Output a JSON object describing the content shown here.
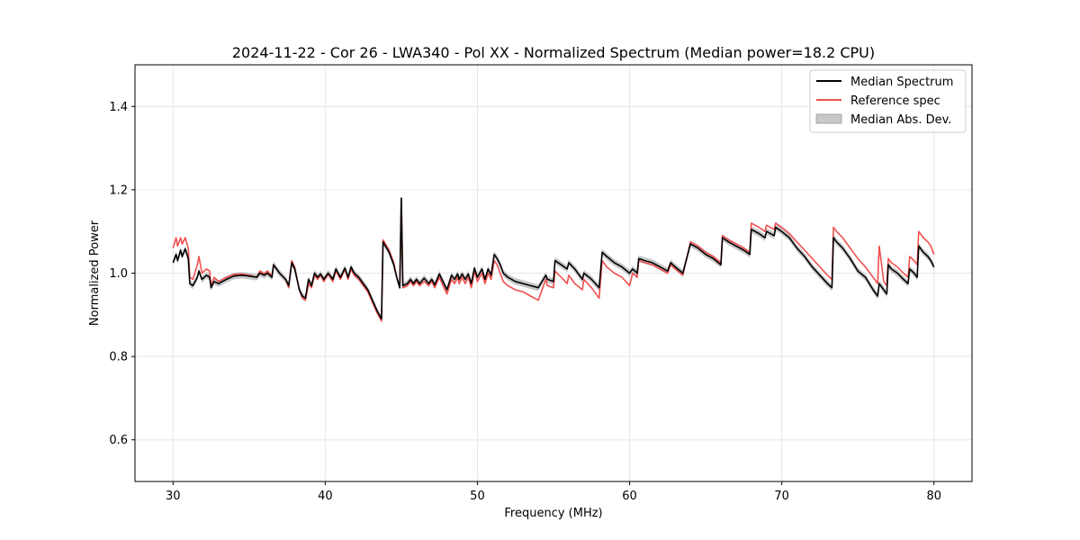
{
  "chart_data": {
    "type": "line",
    "title": "2024-11-22 - Cor 26 - LWA340 - Pol XX - Normalized Spectrum (Median power=18.2 CPU)",
    "xlabel": "Frequency (MHz)",
    "ylabel": "Normalized Power",
    "xlim": [
      27.5,
      82.5
    ],
    "ylim": [
      0.5,
      1.5
    ],
    "xticks": [
      30,
      40,
      50,
      60,
      70,
      80
    ],
    "yticks": [
      0.6,
      0.8,
      1.0,
      1.2,
      1.4
    ],
    "grid": true,
    "legend_position": "top-right",
    "legend": [
      "Median Spectrum",
      "Reference spec",
      "Median Abs. Dev."
    ],
    "colors": {
      "median": "#000000",
      "reference": "#f0504f",
      "mad_fill": "#b0b0b0",
      "grid": "#e6e6e6"
    },
    "mad_width": 0.008,
    "series": [
      {
        "name": "Median Spectrum",
        "x": [
          30.0,
          30.2,
          30.3,
          30.5,
          30.6,
          30.8,
          31.0,
          31.1,
          31.3,
          31.6,
          31.7,
          31.9,
          32.2,
          32.4,
          32.5,
          32.7,
          33.0,
          33.5,
          34.0,
          34.5,
          35.0,
          35.5,
          35.7,
          36.0,
          36.2,
          36.5,
          36.6,
          37.0,
          37.4,
          37.6,
          37.8,
          38.0,
          38.3,
          38.5,
          38.7,
          38.9,
          39.1,
          39.3,
          39.5,
          39.7,
          39.9,
          40.2,
          40.5,
          40.7,
          41.0,
          41.3,
          41.5,
          41.7,
          41.9,
          42.2,
          42.5,
          42.8,
          43.1,
          43.4,
          43.7,
          43.8,
          44.2,
          44.5,
          44.7,
          44.9,
          45.0,
          45.1,
          45.4,
          45.6,
          45.8,
          46.0,
          46.2,
          46.5,
          46.8,
          47.0,
          47.2,
          47.5,
          47.8,
          48.0,
          48.3,
          48.5,
          48.7,
          48.8,
          49.0,
          49.2,
          49.4,
          49.6,
          49.8,
          50.0,
          50.3,
          50.5,
          50.7,
          50.9,
          51.1,
          51.3,
          51.5,
          51.7,
          52.0,
          52.5,
          53.0,
          53.5,
          54.0,
          54.5,
          54.6,
          55.0,
          55.1,
          55.5,
          55.9,
          56.0,
          56.4,
          56.9,
          57.0,
          57.5,
          58.0,
          58.2,
          58.5,
          59.0,
          59.5,
          60.0,
          60.2,
          60.5,
          60.6,
          61.0,
          61.5,
          62.0,
          62.5,
          62.7,
          63.0,
          63.5,
          64.0,
          64.5,
          65.0,
          65.5,
          66.0,
          66.1,
          66.5,
          67.0,
          67.5,
          67.9,
          68.0,
          68.5,
          68.9,
          69.0,
          69.5,
          69.6,
          70.0,
          70.5,
          71.0,
          71.5,
          72.0,
          72.5,
          73.0,
          73.3,
          73.4,
          73.6,
          74.0,
          74.5,
          75.0,
          75.5,
          76.0,
          76.3,
          76.4,
          76.7,
          76.9,
          77.0,
          77.2,
          77.6,
          78.0,
          78.3,
          78.4,
          78.7,
          78.9,
          79.0,
          79.3,
          79.6,
          79.8,
          80.0
        ],
        "values": [
          1.025,
          1.045,
          1.03,
          1.055,
          1.04,
          1.058,
          1.035,
          0.975,
          0.97,
          0.99,
          1.005,
          0.985,
          0.995,
          0.99,
          0.965,
          0.98,
          0.975,
          0.985,
          0.993,
          0.995,
          0.993,
          0.99,
          1.0,
          0.995,
          1.0,
          0.99,
          1.02,
          1.0,
          0.985,
          0.97,
          1.025,
          1.01,
          0.96,
          0.945,
          0.94,
          0.985,
          0.97,
          1.0,
          0.99,
          0.998,
          0.985,
          1.0,
          0.985,
          1.01,
          0.99,
          1.012,
          0.99,
          1.015,
          1.0,
          0.99,
          0.975,
          0.96,
          0.935,
          0.91,
          0.89,
          1.075,
          1.05,
          1.02,
          0.99,
          0.965,
          1.18,
          0.97,
          0.975,
          0.985,
          0.975,
          0.985,
          0.975,
          0.988,
          0.975,
          0.985,
          0.972,
          0.998,
          0.975,
          0.96,
          0.995,
          0.985,
          0.998,
          0.985,
          0.998,
          0.985,
          0.998,
          0.975,
          1.012,
          0.99,
          1.01,
          0.985,
          1.01,
          0.995,
          1.045,
          1.035,
          1.02,
          1.0,
          0.99,
          0.98,
          0.975,
          0.97,
          0.965,
          0.995,
          0.985,
          0.98,
          1.03,
          1.02,
          1.01,
          1.025,
          1.01,
          0.985,
          1.0,
          0.985,
          0.965,
          1.05,
          1.04,
          1.025,
          1.015,
          1.0,
          1.01,
          1.0,
          1.035,
          1.03,
          1.025,
          1.015,
          1.005,
          1.025,
          1.015,
          1.0,
          1.07,
          1.06,
          1.045,
          1.035,
          1.02,
          1.085,
          1.075,
          1.065,
          1.055,
          1.045,
          1.105,
          1.095,
          1.085,
          1.1,
          1.09,
          1.11,
          1.1,
          1.085,
          1.06,
          1.04,
          1.015,
          0.995,
          0.975,
          0.965,
          1.085,
          1.075,
          1.06,
          1.035,
          1.005,
          0.99,
          0.96,
          0.945,
          0.975,
          0.96,
          0.95,
          1.02,
          1.01,
          1.0,
          0.985,
          0.975,
          1.01,
          1.0,
          0.99,
          1.065,
          1.05,
          1.04,
          1.03,
          1.015
        ]
      },
      {
        "name": "Reference spec",
        "x": [
          30.0,
          30.2,
          30.3,
          30.5,
          30.6,
          30.8,
          31.0,
          31.1,
          31.3,
          31.6,
          31.7,
          31.9,
          32.2,
          32.4,
          32.5,
          32.7,
          33.0,
          33.5,
          34.0,
          34.5,
          35.0,
          35.5,
          35.7,
          36.0,
          36.2,
          36.5,
          36.6,
          37.0,
          37.4,
          37.6,
          37.8,
          38.0,
          38.3,
          38.5,
          38.7,
          38.9,
          39.1,
          39.3,
          39.5,
          39.7,
          39.9,
          40.2,
          40.5,
          40.7,
          41.0,
          41.3,
          41.5,
          41.7,
          41.9,
          42.2,
          42.5,
          42.8,
          43.1,
          43.4,
          43.7,
          43.8,
          44.2,
          44.5,
          44.7,
          44.9,
          45.0,
          45.1,
          45.4,
          45.6,
          45.8,
          46.0,
          46.2,
          46.5,
          46.8,
          47.0,
          47.2,
          47.5,
          47.8,
          48.0,
          48.3,
          48.5,
          48.7,
          48.8,
          49.0,
          49.2,
          49.4,
          49.6,
          49.8,
          50.0,
          50.3,
          50.5,
          50.7,
          50.9,
          51.1,
          51.3,
          51.5,
          51.7,
          52.0,
          52.5,
          53.0,
          53.5,
          54.0,
          54.5,
          54.6,
          55.0,
          55.1,
          55.5,
          55.9,
          56.0,
          56.4,
          56.9,
          57.0,
          57.5,
          58.0,
          58.2,
          58.5,
          59.0,
          59.5,
          60.0,
          60.2,
          60.5,
          60.6,
          61.0,
          61.5,
          62.0,
          62.5,
          62.7,
          63.0,
          63.5,
          64.0,
          64.5,
          65.0,
          65.5,
          66.0,
          66.1,
          66.5,
          67.0,
          67.5,
          67.9,
          68.0,
          68.5,
          68.9,
          69.0,
          69.5,
          69.6,
          70.0,
          70.5,
          71.0,
          71.5,
          72.0,
          72.5,
          73.0,
          73.3,
          73.4,
          73.6,
          74.0,
          74.5,
          75.0,
          75.5,
          76.0,
          76.3,
          76.4,
          76.7,
          76.9,
          77.0,
          77.2,
          77.6,
          78.0,
          78.3,
          78.4,
          78.7,
          78.9,
          79.0,
          79.3,
          79.6,
          79.8,
          80.0
        ],
        "values": [
          1.06,
          1.085,
          1.065,
          1.085,
          1.07,
          1.085,
          1.06,
          0.99,
          0.985,
          1.02,
          1.04,
          1.0,
          1.01,
          1.005,
          0.97,
          0.99,
          0.98,
          0.99,
          0.997,
          0.998,
          0.995,
          0.99,
          1.005,
          0.998,
          1.005,
          0.993,
          1.02,
          1.0,
          0.985,
          0.965,
          1.03,
          1.015,
          0.96,
          0.94,
          0.935,
          0.975,
          0.965,
          0.995,
          0.985,
          0.995,
          0.98,
          0.998,
          0.98,
          1.005,
          0.985,
          1.01,
          0.985,
          1.01,
          0.995,
          0.985,
          0.97,
          0.955,
          0.93,
          0.905,
          0.885,
          1.08,
          1.055,
          1.025,
          0.99,
          0.965,
          1.18,
          0.965,
          0.97,
          0.98,
          0.97,
          0.98,
          0.97,
          0.98,
          0.97,
          0.98,
          0.965,
          0.99,
          0.965,
          0.95,
          0.985,
          0.975,
          0.99,
          0.975,
          0.99,
          0.975,
          0.99,
          0.965,
          1.005,
          0.98,
          1.0,
          0.975,
          1.0,
          0.985,
          1.03,
          1.02,
          1.0,
          0.98,
          0.97,
          0.96,
          0.955,
          0.945,
          0.935,
          0.985,
          0.97,
          0.965,
          1.005,
          0.99,
          0.975,
          0.995,
          0.975,
          0.96,
          0.985,
          0.965,
          0.94,
          1.03,
          1.015,
          1.0,
          0.99,
          0.97,
          1.0,
          0.99,
          1.03,
          1.025,
          1.02,
          1.01,
          1.0,
          1.02,
          1.01,
          0.995,
          1.075,
          1.065,
          1.05,
          1.04,
          1.025,
          1.09,
          1.08,
          1.07,
          1.06,
          1.05,
          1.12,
          1.11,
          1.1,
          1.115,
          1.105,
          1.12,
          1.11,
          1.095,
          1.075,
          1.055,
          1.035,
          1.015,
          0.995,
          0.985,
          1.11,
          1.1,
          1.085,
          1.06,
          1.035,
          1.015,
          0.99,
          0.975,
          1.065,
          0.98,
          0.97,
          1.035,
          1.025,
          1.015,
          1.0,
          0.99,
          1.04,
          1.03,
          1.02,
          1.1,
          1.085,
          1.075,
          1.065,
          1.045
        ]
      }
    ]
  }
}
